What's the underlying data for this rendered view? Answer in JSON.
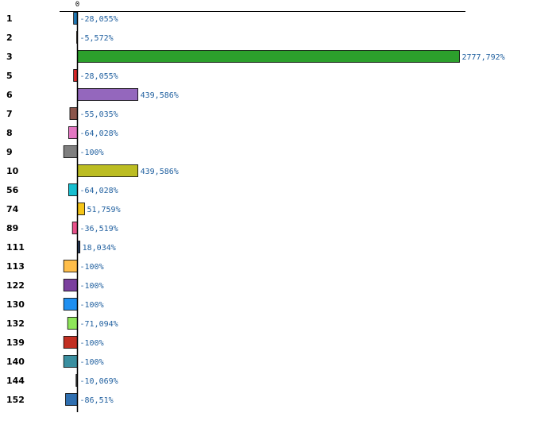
{
  "chart_data": {
    "type": "bar",
    "orientation": "horizontal",
    "x_axis_tick": "0",
    "xlim": [
      -100,
      2777.792
    ],
    "grid": false,
    "legend": "none",
    "categories": [
      "1",
      "2",
      "3",
      "5",
      "6",
      "7",
      "8",
      "9",
      "10",
      "56",
      "74",
      "89",
      "111",
      "113",
      "122",
      "130",
      "132",
      "139",
      "140",
      "144",
      "152"
    ],
    "values": [
      -28.055,
      -5.572,
      2777.792,
      -28.055,
      439.586,
      -55.035,
      -64.028,
      -100,
      439.586,
      -64.028,
      51.759,
      -36.519,
      18.034,
      -100,
      -100,
      -100,
      -71.094,
      -100,
      -100,
      -10.069,
      -86.51
    ],
    "value_labels": [
      "-28,055%",
      "-5,572%",
      "2777,792%",
      "-28,055%",
      "439,586%",
      "-55,035%",
      "-64,028%",
      "-100%",
      "439,586%",
      "-64,028%",
      "51,759%",
      "-36,519%",
      "18,034%",
      "-100%",
      "-100%",
      "-100%",
      "-71,094%",
      "-100%",
      "-100%",
      "-10,069%",
      "-86,51%"
    ],
    "colors": [
      "#1f77b4",
      "#ff7f0e",
      "#2ca02c",
      "#d62728",
      "#9467bd",
      "#8c564b",
      "#e377c2",
      "#7f7f7f",
      "#bcbd22",
      "#17becf",
      "#f5c518",
      "#e8508a",
      "#2a3f5f",
      "#ffbe4a",
      "#7b3f9e",
      "#1f8ff0",
      "#8fe65a",
      "#c22f22",
      "#3a8fa0",
      "#444444",
      "#2f6fb0"
    ],
    "value_label_color": "#1f5f9f"
  }
}
